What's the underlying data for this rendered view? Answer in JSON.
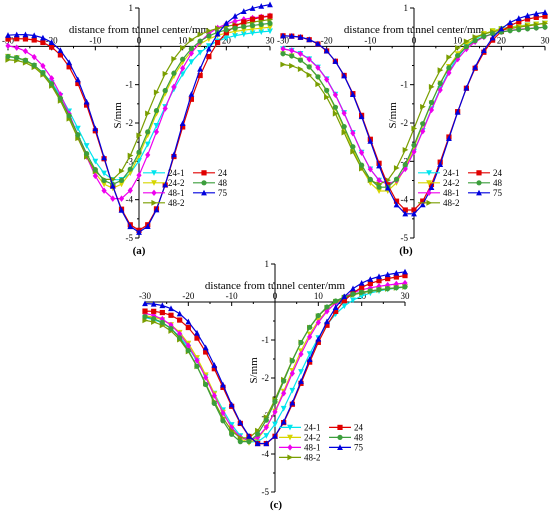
{
  "page": {
    "description_labels": [
      "(a)",
      "(b)",
      "(c)"
    ]
  },
  "chart_data": [
    {
      "panel": "(a)",
      "type": "line",
      "xlabel": "distance from tunnel center/mm",
      "ylabel": "S/mm",
      "xlim": [
        -30,
        30
      ],
      "ylim": [
        -5,
        1
      ],
      "xticks": [
        -30,
        -20,
        -10,
        0,
        10,
        20,
        30
      ],
      "yticks": [
        1,
        0,
        -1,
        -2,
        -3,
        -4,
        -5
      ],
      "grid": false,
      "legend_position": "bottom-right",
      "series": [
        {
          "name": "24-1",
          "color": "#00e5ee",
          "marker": "triangle-down",
          "trough_x": -5,
          "trough_y": -3.5,
          "width": 9,
          "left_end": -0.2,
          "right_end": 0.4
        },
        {
          "name": "24-2",
          "color": "#d6d600",
          "marker": "triangle-down",
          "trough_x": -6,
          "trough_y": -3.7,
          "width": 8.5,
          "left_end": -0.2,
          "right_end": 0.5
        },
        {
          "name": "48-1",
          "color": "#ee00ee",
          "marker": "diamond",
          "trough_x": -5,
          "trough_y": -4.0,
          "width": 9,
          "left_end": 0.1,
          "right_end": 0.8
        },
        {
          "name": "48-2",
          "color": "#7a9e00",
          "marker": "triangle-right",
          "trough_x": -7,
          "trough_y": -3.5,
          "width": 8,
          "left_end": -0.3,
          "right_end": 0.7
        },
        {
          "name": "24",
          "color": "#e00000",
          "marker": "square",
          "trough_x": 0,
          "trough_y": -4.8,
          "width": 8.5,
          "left_end": 0.2,
          "right_end": 0.8
        },
        {
          "name": "48",
          "color": "#3c9e3c",
          "marker": "circle",
          "trough_x": -6,
          "trough_y": -3.6,
          "width": 8.5,
          "left_end": -0.2,
          "right_end": 0.6
        },
        {
          "name": "75",
          "color": "#0000dd",
          "marker": "triangle-up",
          "trough_x": 0,
          "trough_y": -4.85,
          "width": 8.5,
          "left_end": 0.3,
          "right_end": 1.1
        }
      ]
    },
    {
      "panel": "(b)",
      "type": "line",
      "xlabel": "distance from tunnel center/mm",
      "ylabel": "S/mm",
      "xlim": [
        -30,
        30
      ],
      "ylim": [
        -5,
        1
      ],
      "xticks": [
        -30,
        -20,
        -10,
        0,
        10,
        20,
        30
      ],
      "yticks": [
        1,
        0,
        -1,
        -2,
        -3,
        -4,
        -5
      ],
      "grid": false,
      "legend_position": "bottom-right",
      "series": [
        {
          "name": "24-1",
          "color": "#00e5ee",
          "marker": "triangle-down",
          "trough_x": -6,
          "trough_y": -3.6,
          "width": 8.5,
          "left_end": 0.0,
          "right_end": 0.6
        },
        {
          "name": "24-2",
          "color": "#d6d600",
          "marker": "triangle-down",
          "trough_x": -7,
          "trough_y": -3.8,
          "width": 8.5,
          "left_end": -0.1,
          "right_end": 0.6
        },
        {
          "name": "48-1",
          "color": "#ee00ee",
          "marker": "diamond",
          "trough_x": -6,
          "trough_y": -3.6,
          "width": 8.5,
          "left_end": 0.0,
          "right_end": 0.5
        },
        {
          "name": "48-2",
          "color": "#7a9e00",
          "marker": "triangle-right",
          "trough_x": -8,
          "trough_y": -3.6,
          "width": 8,
          "left_end": -0.4,
          "right_end": 0.6
        },
        {
          "name": "24",
          "color": "#e00000",
          "marker": "square",
          "trough_x": -1,
          "trough_y": -4.3,
          "width": 9,
          "left_end": 0.3,
          "right_end": 0.8
        },
        {
          "name": "48",
          "color": "#3c9e3c",
          "marker": "circle",
          "trough_x": -7,
          "trough_y": -3.7,
          "width": 8.5,
          "left_end": -0.1,
          "right_end": 0.5
        },
        {
          "name": "75",
          "color": "#0000dd",
          "marker": "triangle-up",
          "trough_x": -1,
          "trough_y": -4.4,
          "width": 9,
          "left_end": 0.3,
          "right_end": 0.9
        }
      ]
    },
    {
      "panel": "(c)",
      "type": "line",
      "xlabel": "distance from tunnel center/mm",
      "ylabel": "S/mm",
      "xlim": [
        -30,
        30
      ],
      "ylim": [
        -5,
        1
      ],
      "xticks": [
        -30,
        -20,
        -10,
        0,
        10,
        20,
        30
      ],
      "yticks": [
        1,
        0,
        -1,
        -2,
        -3,
        -4,
        -5
      ],
      "grid": false,
      "legend_position": "bottom-right",
      "series": [
        {
          "name": "24-1",
          "color": "#00e5ee",
          "marker": "triangle-down",
          "trough_x": -5,
          "trough_y": -3.7,
          "width": 9.5,
          "left_end": -0.3,
          "right_end": 0.4
        },
        {
          "name": "24-2",
          "color": "#d6d600",
          "marker": "triangle-down",
          "trough_x": -6,
          "trough_y": -3.7,
          "width": 8.5,
          "left_end": -0.3,
          "right_end": 0.4
        },
        {
          "name": "48-1",
          "color": "#ee00ee",
          "marker": "diamond",
          "trough_x": -6,
          "trough_y": -3.65,
          "width": 9,
          "left_end": -0.2,
          "right_end": 0.5
        },
        {
          "name": "48-2",
          "color": "#7a9e00",
          "marker": "triangle-right",
          "trough_x": -7,
          "trough_y": -3.6,
          "width": 8.5,
          "left_end": -0.4,
          "right_end": 0.4
        },
        {
          "name": "24",
          "color": "#e00000",
          "marker": "square",
          "trough_x": -3,
          "trough_y": -3.75,
          "width": 9,
          "left_end": -0.2,
          "right_end": 0.7
        },
        {
          "name": "48",
          "color": "#3c9e3c",
          "marker": "circle",
          "trough_x": -7,
          "trough_y": -3.7,
          "width": 8.5,
          "left_end": -0.3,
          "right_end": 0.4
        },
        {
          "name": "75",
          "color": "#0000dd",
          "marker": "triangle-up",
          "trough_x": -3,
          "trough_y": -3.75,
          "width": 9,
          "left_end": 0.0,
          "right_end": 0.8
        }
      ]
    }
  ]
}
